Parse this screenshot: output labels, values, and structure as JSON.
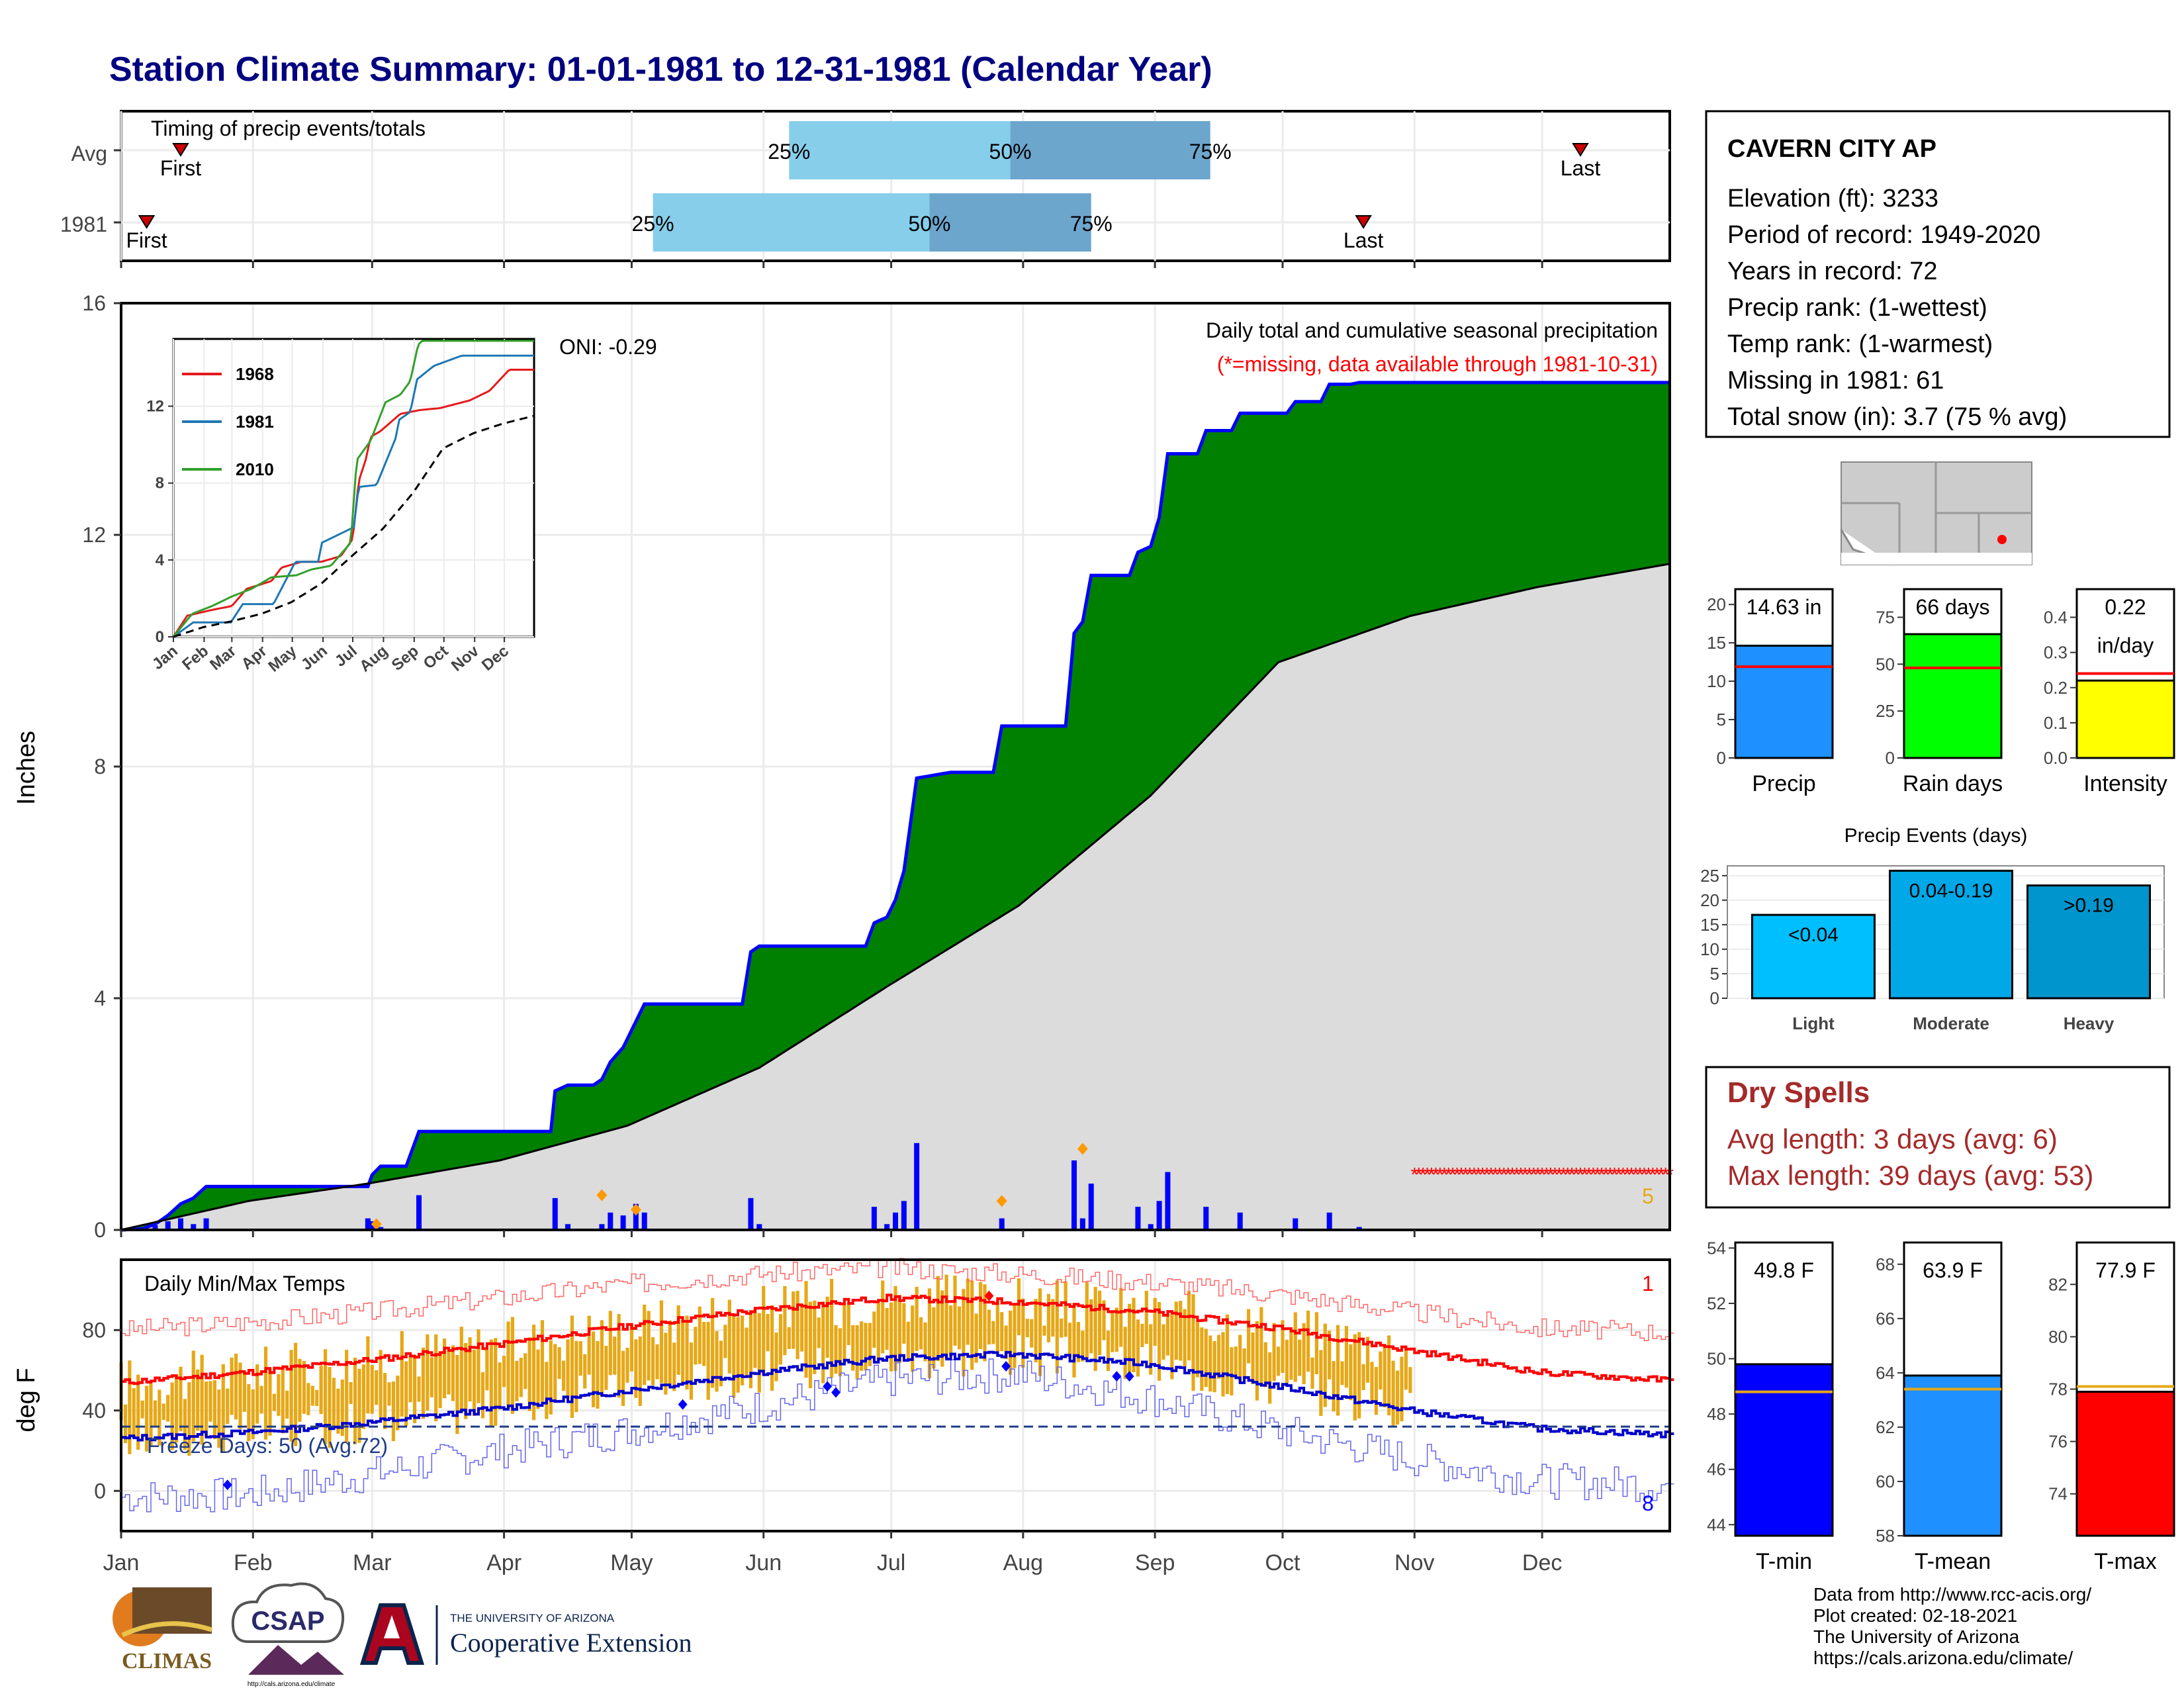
{
  "title": "Station Climate Summary: 01-01-1981 to 12-31-1981 (Calendar Year)",
  "months": [
    "Jan",
    "Feb",
    "Mar",
    "Apr",
    "May",
    "Jun",
    "Jul",
    "Aug",
    "Sep",
    "Oct",
    "Nov",
    "Dec"
  ],
  "timing": {
    "label": "Timing of precip events/totals",
    "rows": [
      {
        "name": "Avg",
        "first_doy": 15,
        "q25_doy": 158,
        "q50_doy": 210,
        "q75_doy": 257,
        "last_doy": 344,
        "first_label": "First",
        "last_label": "Last",
        "q25_label": "25%",
        "q50_label": "50%",
        "q75_label": "75%"
      },
      {
        "name": "1981",
        "first_doy": 7,
        "q25_doy": 126,
        "q50_doy": 191,
        "q75_doy": 229,
        "last_doy": 293,
        "first_label": "First",
        "last_label": "Last",
        "q25_label": "25%",
        "q50_label": "50%",
        "q75_label": "75%"
      }
    ]
  },
  "precip": {
    "ylabel": "Inches",
    "yticks": [
      0,
      4,
      8,
      12,
      16
    ],
    "oni_label": "ONI: -0.29",
    "title_right": "Daily total and cumulative seasonal precipitation",
    "missing_note": "(*=missing, data available through 1981-10-31)",
    "missing_count_label": "5"
  },
  "chart_data": [
    {
      "type": "area",
      "name": "cumulative-precipitation",
      "xlabel": "",
      "ylabel": "Inches",
      "xlim": [
        1,
        365
      ],
      "ylim": [
        0,
        16
      ],
      "grid": true,
      "series": [
        {
          "name": "1981",
          "points": [
            [
              1,
              0
            ],
            [
              6,
              0.02
            ],
            [
              9,
              0.1
            ],
            [
              12,
              0.25
            ],
            [
              15,
              0.45
            ],
            [
              18,
              0.55
            ],
            [
              21,
              0.75
            ],
            [
              59,
              0.75
            ],
            [
              60,
              0.95
            ],
            [
              62,
              1.1
            ],
            [
              68,
              1.1
            ],
            [
              71,
              1.7
            ],
            [
              102,
              1.7
            ],
            [
              103,
              2.4
            ],
            [
              106,
              2.5
            ],
            [
              112,
              2.5
            ],
            [
              114,
              2.6
            ],
            [
              116,
              2.9
            ],
            [
              119,
              3.15
            ],
            [
              122,
              3.6
            ],
            [
              124,
              3.9
            ],
            [
              147,
              3.9
            ],
            [
              149,
              4.8
            ],
            [
              151,
              4.9
            ],
            [
              176,
              4.9
            ],
            [
              178,
              5.3
            ],
            [
              181,
              5.4
            ],
            [
              183,
              5.7
            ],
            [
              185,
              6.2
            ],
            [
              188,
              7.8
            ],
            [
              196,
              7.9
            ],
            [
              206,
              7.9
            ],
            [
              208,
              8.7
            ],
            [
              223,
              8.7
            ],
            [
              225,
              10.3
            ],
            [
              227,
              10.5
            ],
            [
              229,
              11.3
            ],
            [
              238,
              11.3
            ],
            [
              240,
              11.7
            ],
            [
              243,
              11.8
            ],
            [
              245,
              12.3
            ],
            [
              247,
              13.4
            ],
            [
              254,
              13.4
            ],
            [
              256,
              13.8
            ],
            [
              262,
              13.8
            ],
            [
              264,
              14.1
            ],
            [
              275,
              14.1
            ],
            [
              277,
              14.3
            ],
            [
              283,
              14.3
            ],
            [
              285,
              14.6
            ],
            [
              290,
              14.6
            ],
            [
              292,
              14.63
            ],
            [
              365,
              14.63
            ]
          ]
        },
        {
          "name": "Avg",
          "points": [
            [
              1,
              0
            ],
            [
              31,
              0.5
            ],
            [
              59,
              0.8
            ],
            [
              90,
              1.2
            ],
            [
              120,
              1.8
            ],
            [
              151,
              2.8
            ],
            [
              181,
              4.2
            ],
            [
              212,
              5.6
            ],
            [
              243,
              7.5
            ],
            [
              273,
              9.8
            ],
            [
              304,
              10.6
            ],
            [
              334,
              11.1
            ],
            [
              365,
              11.5
            ]
          ]
        }
      ]
    },
    {
      "type": "bar",
      "name": "daily-precipitation",
      "ylabel": "Inches",
      "x": [
        6,
        9,
        12,
        15,
        18,
        21,
        59,
        60,
        62,
        71,
        103,
        106,
        114,
        116,
        119,
        122,
        124,
        149,
        151,
        178,
        181,
        183,
        185,
        188,
        208,
        225,
        227,
        229,
        240,
        243,
        245,
        247,
        256,
        264,
        277,
        285,
        292
      ],
      "values": [
        0.02,
        0.08,
        0.15,
        0.2,
        0.1,
        0.2,
        0.2,
        0.15,
        0.05,
        0.6,
        0.55,
        0.1,
        0.1,
        0.3,
        0.25,
        0.45,
        0.3,
        0.55,
        0.1,
        0.4,
        0.1,
        0.3,
        0.5,
        1.5,
        0.2,
        1.2,
        0.2,
        0.8,
        0.4,
        0.1,
        0.5,
        1.0,
        0.4,
        0.3,
        0.2,
        0.3,
        0.05
      ]
    },
    {
      "type": "line",
      "name": "inset-cumulative-precip",
      "ylim": [
        0,
        15.5
      ],
      "yticks": [
        0,
        4,
        8,
        12
      ],
      "series": [
        {
          "name": "1968",
          "color": "#e31a1c",
          "points": [
            [
              1,
              0
            ],
            [
              15,
              1.1
            ],
            [
              40,
              1.4
            ],
            [
              60,
              1.6
            ],
            [
              75,
              2.5
            ],
            [
              100,
              2.9
            ],
            [
              110,
              3.6
            ],
            [
              130,
              3.9
            ],
            [
              150,
              3.9
            ],
            [
              170,
              4.2
            ],
            [
              182,
              5.1
            ],
            [
              188,
              8.1
            ],
            [
              195,
              9.2
            ],
            [
              200,
              10.4
            ],
            [
              210,
              10.7
            ],
            [
              230,
              11.6
            ],
            [
              250,
              11.8
            ],
            [
              270,
              11.9
            ],
            [
              300,
              12.3
            ],
            [
              320,
              12.8
            ],
            [
              340,
              13.9
            ],
            [
              365,
              13.9
            ]
          ]
        },
        {
          "name": "1981",
          "color": "#1f78b4",
          "points": [
            [
              1,
              0
            ],
            [
              21,
              0.75
            ],
            [
              59,
              0.75
            ],
            [
              71,
              1.7
            ],
            [
              102,
              1.7
            ],
            [
              124,
              3.9
            ],
            [
              147,
              3.9
            ],
            [
              151,
              4.9
            ],
            [
              183,
              5.7
            ],
            [
              188,
              7.8
            ],
            [
              206,
              7.9
            ],
            [
              225,
              10.3
            ],
            [
              229,
              11.3
            ],
            [
              240,
              11.7
            ],
            [
              247,
              13.4
            ],
            [
              264,
              14.1
            ],
            [
              292,
              14.63
            ],
            [
              365,
              14.63
            ]
          ]
        },
        {
          "name": "2010",
          "color": "#33a02c",
          "points": [
            [
              1,
              0
            ],
            [
              20,
              1.2
            ],
            [
              40,
              1.6
            ],
            [
              60,
              2.1
            ],
            [
              80,
              2.5
            ],
            [
              100,
              3.1
            ],
            [
              125,
              3.2
            ],
            [
              140,
              3.5
            ],
            [
              160,
              3.7
            ],
            [
              180,
              4.9
            ],
            [
              186,
              9.2
            ],
            [
              200,
              10.2
            ],
            [
              215,
              12.2
            ],
            [
              230,
              12.6
            ],
            [
              240,
              13.3
            ],
            [
              248,
              15.2
            ],
            [
              252,
              15.4
            ],
            [
              365,
              15.4
            ]
          ]
        },
        {
          "name": "Avg",
          "color": "#000000",
          "points": [
            [
              1,
              0
            ],
            [
              31,
              0.5
            ],
            [
              59,
              0.8
            ],
            [
              90,
              1.2
            ],
            [
              120,
              1.8
            ],
            [
              151,
              2.8
            ],
            [
              181,
              4.2
            ],
            [
              212,
              5.6
            ],
            [
              243,
              7.5
            ],
            [
              273,
              9.8
            ],
            [
              304,
              10.6
            ],
            [
              334,
              11.1
            ],
            [
              365,
              11.5
            ]
          ]
        }
      ]
    },
    {
      "type": "line",
      "name": "daily-temperatures",
      "ylabel": "deg F",
      "yticks": [
        0,
        40,
        80
      ],
      "ylim": [
        -20,
        115
      ],
      "series": [
        {
          "name": "Avg max",
          "color": "#ff0000",
          "points": [
            [
              1,
              54
            ],
            [
              31,
              59
            ],
            [
              59,
              65
            ],
            [
              90,
              73
            ],
            [
              120,
              82
            ],
            [
              151,
              90
            ],
            [
              181,
              96
            ],
            [
              212,
              94
            ],
            [
              243,
              89
            ],
            [
              273,
              81
            ],
            [
              304,
              70
            ],
            [
              334,
              59
            ],
            [
              365,
              55
            ]
          ]
        },
        {
          "name": "Avg min",
          "color": "#0000cc",
          "points": [
            [
              1,
              26
            ],
            [
              31,
              29
            ],
            [
              59,
              34
            ],
            [
              90,
              41
            ],
            [
              120,
              50
            ],
            [
              151,
              59
            ],
            [
              181,
              66
            ],
            [
              212,
              68
            ],
            [
              243,
              63
            ],
            [
              273,
              52
            ],
            [
              304,
              40
            ],
            [
              334,
              31
            ],
            [
              365,
              28
            ]
          ]
        },
        {
          "name": "Record max",
          "color": "#ff6666",
          "points": [
            [
              1,
              80
            ],
            [
              31,
              84
            ],
            [
              59,
              89
            ],
            [
              90,
              96
            ],
            [
              120,
              103
            ],
            [
              151,
              108
            ],
            [
              181,
              111
            ],
            [
              212,
              108
            ],
            [
              243,
              104
            ],
            [
              273,
              98
            ],
            [
              304,
              89
            ],
            [
              334,
              81
            ],
            [
              365,
              79
            ]
          ]
        },
        {
          "name": "Record min",
          "color": "#6666ee",
          "points": [
            [
              1,
              -3
            ],
            [
              31,
              -2
            ],
            [
              59,
              8
            ],
            [
              90,
              20
            ],
            [
              120,
              30
            ],
            [
              151,
              42
            ],
            [
              181,
              55
            ],
            [
              212,
              58
            ],
            [
              243,
              46
            ],
            [
              273,
              30
            ],
            [
              304,
              16
            ],
            [
              334,
              5
            ],
            [
              365,
              3
            ]
          ]
        }
      ],
      "freeze_line": 32
    }
  ],
  "temps": {
    "title": "Daily Min/Max Temps",
    "ylabel": "deg F",
    "yticks": [
      0,
      40,
      80
    ],
    "freeze_label": "Freeze Days: 50 (Avg:72)",
    "count_hi": "1",
    "count_lo": "8"
  },
  "station": {
    "name": "CAVERN CITY AP",
    "lines": [
      "Elevation (ft): 3233",
      "Period of record: 1949-2020",
      "Years in record: 72",
      "Precip rank:  (1-wettest)",
      "Temp rank:  (1-warmest)",
      "Missing in 1981: 61",
      "Total snow (in): 3.7 (75 % avg)"
    ]
  },
  "bars_top": [
    {
      "label": "Precip",
      "value_label": "14.63 in",
      "value": 14.63,
      "avg": 11.9,
      "ymax": 22,
      "ticks": [
        0,
        5,
        10,
        15,
        20
      ],
      "color": "#1e90ff"
    },
    {
      "label": "Rain days",
      "value_label": "66 days",
      "value": 66,
      "avg": 48,
      "ymax": 90,
      "ticks": [
        0,
        25,
        50,
        75
      ],
      "color": "#00ff00"
    },
    {
      "label": "Intensity",
      "value_label": "0.22",
      "value_label2": "in/day",
      "value": 0.22,
      "avg": 0.24,
      "ymax": 0.48,
      "ticks": [
        "0.0",
        "0.1",
        "0.2",
        "0.3",
        "0.4"
      ],
      "color": "#ffff00"
    }
  ],
  "events": {
    "title": "Precip Events (days)",
    "ticks": [
      0,
      5,
      10,
      15,
      20,
      25
    ],
    "items": [
      {
        "label": "Light",
        "bar_label": "<0.04",
        "value": 17,
        "color": "#00bfff"
      },
      {
        "label": "Moderate",
        "bar_label": "0.04-0.19",
        "value": 26,
        "color": "#00a8e8"
      },
      {
        "label": "Heavy",
        "bar_label": ">0.19",
        "value": 23,
        "color": "#0095cc"
      }
    ]
  },
  "dry": {
    "title": "Dry Spells",
    "avg_line": "Avg length: 3 days (avg: 6)",
    "max_line": "Max length: 39 days (avg: 53)"
  },
  "temp_bars": [
    {
      "label": "T-min",
      "value_label": "49.8 F",
      "value": 49.8,
      "avg": 48.8,
      "ymin": 43.6,
      "ymax": 54.2,
      "ticks": [
        44,
        46,
        48,
        50,
        52,
        54
      ],
      "color": "#0000ff"
    },
    {
      "label": "T-mean",
      "value_label": "63.9 F",
      "value": 63.9,
      "avg": 63.4,
      "ymin": 58,
      "ymax": 68.8,
      "ticks": [
        58,
        60,
        62,
        64,
        66,
        68
      ],
      "color": "#1e90ff"
    },
    {
      "label": "T-max",
      "value_label": "77.9 F",
      "value": 77.9,
      "avg": 78.1,
      "ymin": 72.4,
      "ymax": 83.6,
      "ticks": [
        74,
        76,
        78,
        80,
        82
      ],
      "color": "#ff0000"
    }
  ],
  "footer": {
    "lines": [
      "Data from http://www.rcc-acis.org/",
      "Plot created: 02-18-2021",
      "The University of Arizona",
      "https://cals.arizona.edu/climate/"
    ],
    "climas": "CLIMAS",
    "csap": "CSAP",
    "csap_url": "http://cals.arizona.edu/climate",
    "ua_small": "THE UNIVERSITY OF ARIZONA",
    "ua_big": "Cooperative Extension"
  },
  "colors": {
    "title": "#000080",
    "green": "#008000",
    "blue_line": "#0000ff",
    "grey_fill": "#dcdcdc",
    "dry": "#a52a2a",
    "orange": "#e6a817"
  }
}
